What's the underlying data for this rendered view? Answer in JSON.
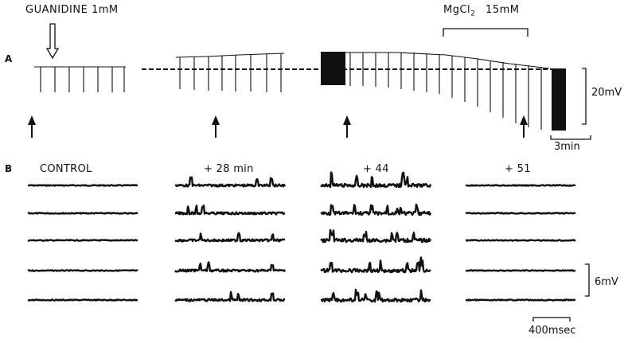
{
  "panels": {
    "a": "A",
    "b": "B"
  },
  "drugs": {
    "guanidine": "GUANIDINE  1mM",
    "mgcl2_main": "MgCl",
    "mgcl2_sub": "2",
    "mgcl2_dose": "15mM"
  },
  "scales": {
    "a_voltage": "20mV",
    "a_time": "3min",
    "b_voltage": "6mV",
    "b_time": "400msec"
  },
  "conditions": [
    {
      "label": "CONTROL",
      "noise": 0,
      "spikes": 0
    },
    {
      "label": "+ 28 min",
      "noise": 1.2,
      "spikes": 3
    },
    {
      "label": "+ 44",
      "noise": 2.2,
      "spikes": 7
    },
    {
      "label": "+ 51",
      "noise": 0,
      "spikes": 0
    }
  ],
  "colors": {
    "ink": "#111111",
    "background": "#ffffff"
  }
}
